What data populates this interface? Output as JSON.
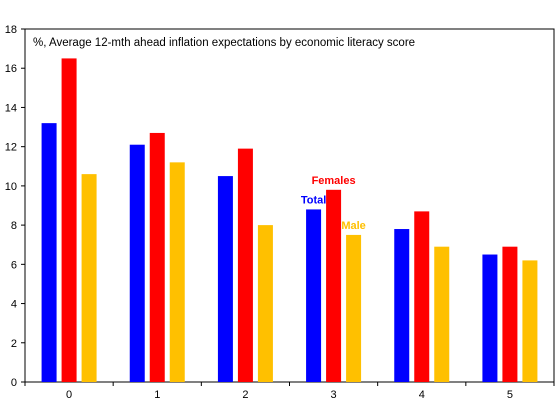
{
  "chart_data": {
    "type": "bar",
    "title": "%, Average 12-mth ahead inflation expectations by economic literacy score",
    "xlabel": "",
    "ylabel": "",
    "categories": [
      "0",
      "1",
      "2",
      "3",
      "4",
      "5"
    ],
    "ylim": [
      0,
      18
    ],
    "yticks": [
      0,
      2,
      4,
      6,
      8,
      10,
      12,
      14,
      16,
      18
    ],
    "grid": false,
    "series": [
      {
        "name": "Total",
        "color": "#0000ff",
        "values": [
          13.2,
          12.1,
          10.5,
          8.8,
          7.8,
          6.5
        ]
      },
      {
        "name": "Females",
        "color": "#ff0000",
        "values": [
          16.5,
          12.7,
          11.9,
          9.8,
          8.7,
          6.9
        ]
      },
      {
        "name": "Male",
        "color": "#ffc000",
        "values": [
          10.6,
          11.2,
          8.0,
          7.5,
          6.9,
          6.2
        ]
      }
    ],
    "annotations": [
      {
        "text": "Total",
        "series": 0,
        "category": "3"
      },
      {
        "text": "Females",
        "series": 1,
        "category": "3"
      },
      {
        "text": "Male",
        "series": 2,
        "category": "3"
      }
    ]
  }
}
